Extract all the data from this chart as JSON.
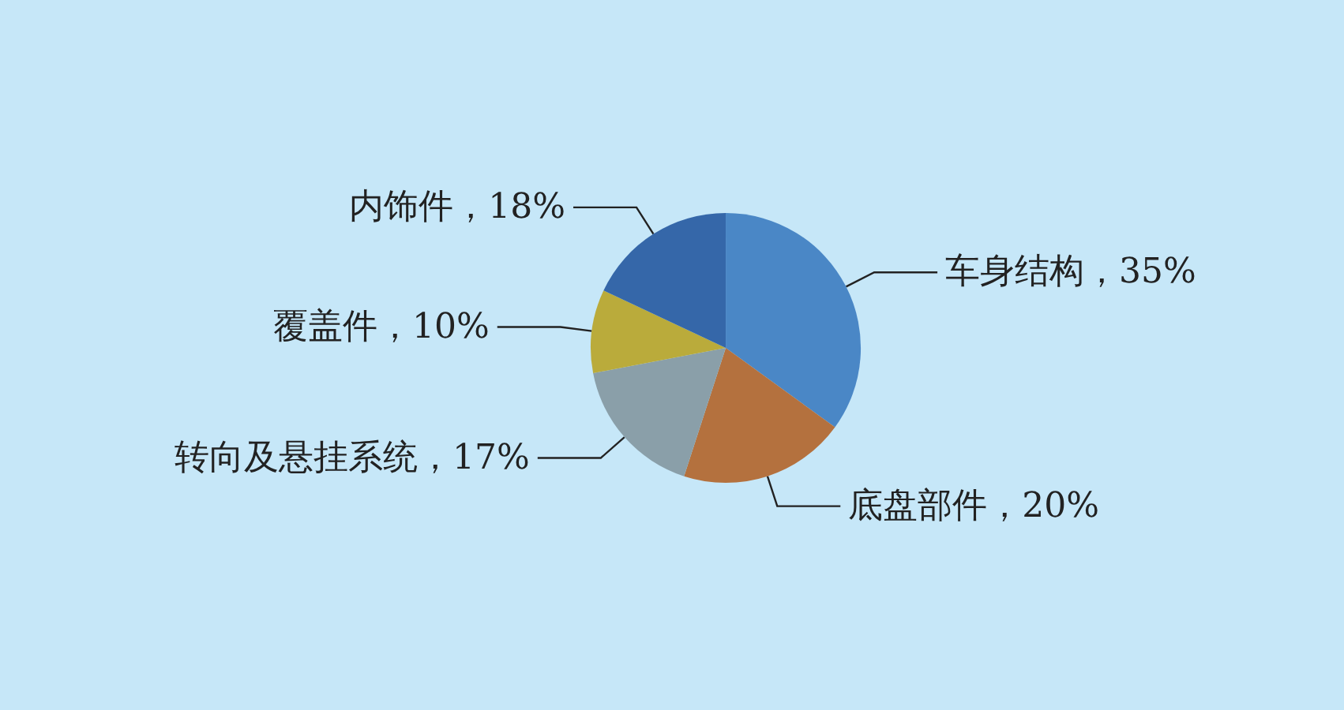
{
  "chart_data": {
    "type": "pie",
    "categories": [
      "车身结构",
      "底盘部件",
      "转向及悬挂系统",
      "覆盖件",
      "内饰件"
    ],
    "values": [
      35,
      20,
      17,
      10,
      18
    ],
    "value_labels": [
      "35%",
      "20%",
      "17%",
      "10%",
      "18%"
    ],
    "colors": [
      "#4a87c6",
      "#b4713e",
      "#8a9fa9",
      "#baab3b",
      "#3567a9"
    ]
  }
}
